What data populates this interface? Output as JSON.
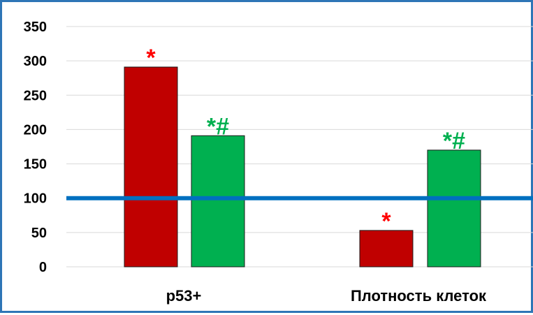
{
  "chart_data": {
    "type": "bar",
    "title": "",
    "xlabel": "",
    "ylabel": "",
    "categories": [
      "p53+",
      "Плотность клеток"
    ],
    "yticks": [
      "0",
      "50",
      "100",
      "150",
      "200",
      "250",
      "300",
      "350"
    ],
    "ylim": [
      0,
      350
    ],
    "grid": true,
    "series": [
      {
        "color": "#c00000",
        "values": [
          291,
          53
        ],
        "annotations": [
          "*",
          "*"
        ],
        "annotation_color": "#ff0000"
      },
      {
        "color": "#00b050",
        "values": [
          191,
          170
        ],
        "annotations": [
          "*#",
          "*#"
        ],
        "annotation_color": "#00b050"
      }
    ],
    "reference_line": {
      "value": 100,
      "color": "#0070c0"
    }
  }
}
